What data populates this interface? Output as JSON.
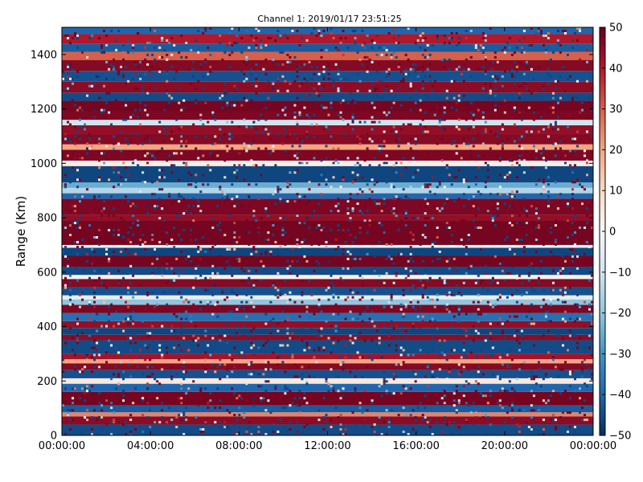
{
  "chart_data": {
    "type": "heatmap",
    "title": "Channel 1: 2019/01/17 23:51:25",
    "xlabel": "",
    "ylabel": "Range (Km)",
    "x_tick_labels": [
      "00:00:00",
      "04:00:00",
      "08:00:00",
      "12:00:00",
      "16:00:00",
      "20:00:00",
      "00:00:00"
    ],
    "y_tick_labels": [
      "0",
      "200",
      "400",
      "600",
      "800",
      "1000",
      "1200",
      "1400"
    ],
    "xlim": [
      "00:00:00",
      "00:00:00"
    ],
    "ylim": [
      0,
      1500
    ],
    "colorbar": {
      "colormap": "RdBu_r",
      "range": [
        -50,
        50
      ],
      "tick_labels": [
        "50",
        "40",
        "30",
        "20",
        "10",
        "0",
        "−10",
        "−20",
        "−30",
        "−40",
        "−50"
      ],
      "tick_values": [
        50,
        40,
        30,
        20,
        10,
        0,
        -10,
        -20,
        -30,
        -40,
        -50
      ]
    },
    "grid": false,
    "colors": {
      "low": "#053061",
      "mid": "#f7f7f7",
      "high": "#67001f"
    },
    "range_bands_km": [
      {
        "y0": 0,
        "y1": 40,
        "value": -45
      },
      {
        "y0": 40,
        "y1": 70,
        "value": 45
      },
      {
        "y0": 70,
        "y1": 85,
        "value": 25
      },
      {
        "y0": 85,
        "y1": 110,
        "value": -42
      },
      {
        "y0": 110,
        "y1": 160,
        "value": 48
      },
      {
        "y0": 160,
        "y1": 190,
        "value": -40
      },
      {
        "y0": 190,
        "y1": 210,
        "value": 5
      },
      {
        "y0": 210,
        "y1": 240,
        "value": -44
      },
      {
        "y0": 240,
        "y1": 265,
        "value": 46
      },
      {
        "y0": 265,
        "y1": 280,
        "value": 20
      },
      {
        "y0": 280,
        "y1": 300,
        "value": 42
      },
      {
        "y0": 300,
        "y1": 350,
        "value": -45
      },
      {
        "y0": 350,
        "y1": 370,
        "value": 45
      },
      {
        "y0": 370,
        "y1": 395,
        "value": -46
      },
      {
        "y0": 395,
        "y1": 420,
        "value": 44
      },
      {
        "y0": 420,
        "y1": 450,
        "value": -38
      },
      {
        "y0": 450,
        "y1": 480,
        "value": 47
      },
      {
        "y0": 480,
        "y1": 500,
        "value": -20
      },
      {
        "y0": 500,
        "y1": 515,
        "value": -5
      },
      {
        "y0": 515,
        "y1": 545,
        "value": -44
      },
      {
        "y0": 545,
        "y1": 575,
        "value": 46
      },
      {
        "y0": 575,
        "y1": 590,
        "value": 2
      },
      {
        "y0": 590,
        "y1": 620,
        "value": -45
      },
      {
        "y0": 620,
        "y1": 660,
        "value": 48
      },
      {
        "y0": 660,
        "y1": 690,
        "value": -46
      },
      {
        "y0": 690,
        "y1": 700,
        "value": 0
      },
      {
        "y0": 700,
        "y1": 790,
        "value": 48
      },
      {
        "y0": 790,
        "y1": 810,
        "value": 44
      },
      {
        "y0": 810,
        "y1": 870,
        "value": 47
      },
      {
        "y0": 870,
        "y1": 890,
        "value": -40
      },
      {
        "y0": 890,
        "y1": 910,
        "value": -15
      },
      {
        "y0": 910,
        "y1": 930,
        "value": -25
      },
      {
        "y0": 930,
        "y1": 990,
        "value": -46
      },
      {
        "y0": 990,
        "y1": 1010,
        "value": 3
      },
      {
        "y0": 1010,
        "y1": 1050,
        "value": 47
      },
      {
        "y0": 1050,
        "y1": 1070,
        "value": 20
      },
      {
        "y0": 1070,
        "y1": 1110,
        "value": 46
      },
      {
        "y0": 1110,
        "y1": 1140,
        "value": 44
      },
      {
        "y0": 1140,
        "y1": 1160,
        "value": -10
      },
      {
        "y0": 1160,
        "y1": 1190,
        "value": 47
      },
      {
        "y0": 1190,
        "y1": 1230,
        "value": 48
      },
      {
        "y0": 1230,
        "y1": 1260,
        "value": -45
      },
      {
        "y0": 1260,
        "y1": 1300,
        "value": 45
      },
      {
        "y0": 1300,
        "y1": 1340,
        "value": -44
      },
      {
        "y0": 1340,
        "y1": 1380,
        "value": 46
      },
      {
        "y0": 1380,
        "y1": 1410,
        "value": 30
      },
      {
        "y0": 1410,
        "y1": 1440,
        "value": -42
      },
      {
        "y0": 1440,
        "y1": 1475,
        "value": 40
      },
      {
        "y0": 1475,
        "y1": 1500,
        "value": -40
      }
    ]
  }
}
